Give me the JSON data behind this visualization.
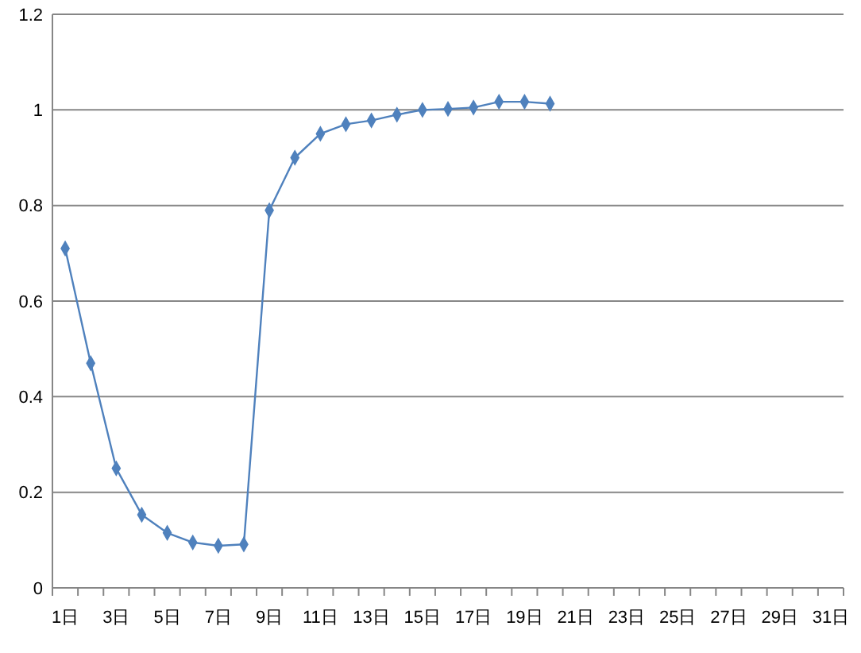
{
  "chart_data": {
    "type": "line",
    "categories": [
      "1日",
      null,
      "3日",
      null,
      "5日",
      null,
      "7日",
      null,
      "9日",
      null,
      "11日",
      null,
      "13日",
      null,
      "15日",
      null,
      "17日",
      null,
      "19日",
      null,
      "21日",
      null,
      "23日",
      null,
      "25日",
      null,
      "27日",
      null,
      "29日",
      null,
      "31日"
    ],
    "series": [
      {
        "color": "#4f81bd",
        "values": [
          0.71,
          0.47,
          0.25,
          0.153,
          0.115,
          0.095,
          0.088,
          0.091,
          0.79,
          0.9,
          0.95,
          0.97,
          0.978,
          0.99,
          1.0,
          1.002,
          1.005,
          1.017,
          1.017,
          1.013,
          null,
          null,
          null,
          null,
          null,
          null,
          null,
          null,
          null,
          null,
          null
        ]
      }
    ],
    "ylim": [
      0,
      1.2
    ],
    "yticks": [
      {
        "value": 0,
        "label": "0"
      },
      0.2,
      0.4,
      0.6,
      0.8,
      {
        "value": 1,
        "label": "1"
      },
      1.2
    ],
    "grid": "y",
    "marker": "diamond",
    "line_style": "solid"
  }
}
